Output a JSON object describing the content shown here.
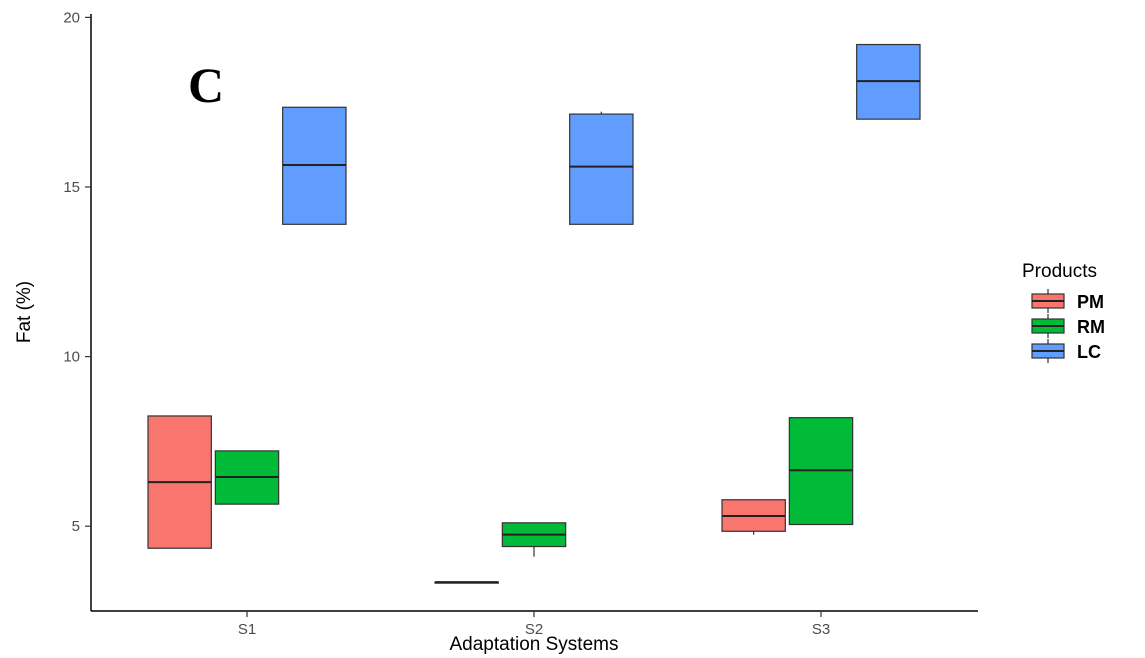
{
  "panel_label": "C",
  "chart_data": {
    "type": "box",
    "xlabel": "Adaptation Systems",
    "ylabel": "Fat (%)",
    "categories": [
      "S1",
      "S2",
      "S3"
    ],
    "y_ticks": [
      5,
      10,
      15,
      20
    ],
    "ylim": [
      2.5,
      20.1
    ],
    "grid": false,
    "legend": {
      "title": "Products",
      "position": "right"
    },
    "series": [
      {
        "name": "PM",
        "color": "#F8766D",
        "boxes": [
          {
            "category": "S1",
            "min": 4.35,
            "q1": 4.35,
            "median": 6.3,
            "q3": 8.25,
            "max": 8.25
          },
          {
            "category": "S2",
            "min": 3.35,
            "q1": 3.35,
            "median": 3.35,
            "q3": 3.35,
            "max": 3.35
          },
          {
            "category": "S3",
            "min": 4.75,
            "q1": 4.85,
            "median": 5.3,
            "q3": 5.78,
            "max": 5.78
          }
        ]
      },
      {
        "name": "RM",
        "color": "#00BA38",
        "boxes": [
          {
            "category": "S1",
            "min": 5.65,
            "q1": 5.65,
            "median": 6.45,
            "q3": 7.22,
            "max": 7.22
          },
          {
            "category": "S2",
            "min": 4.1,
            "q1": 4.4,
            "median": 4.75,
            "q3": 5.1,
            "max": 5.1
          },
          {
            "category": "S3",
            "min": 5.05,
            "q1": 5.05,
            "median": 6.65,
            "q3": 8.2,
            "max": 8.2
          }
        ]
      },
      {
        "name": "LC",
        "color": "#619CFF",
        "boxes": [
          {
            "category": "S1",
            "min": 13.9,
            "q1": 13.9,
            "median": 15.65,
            "q3": 17.35,
            "max": 17.35
          },
          {
            "category": "S2",
            "min": 13.9,
            "q1": 13.9,
            "median": 15.6,
            "q3": 17.15,
            "max": 17.22
          },
          {
            "category": "S3",
            "min": 17.0,
            "q1": 17.0,
            "median": 18.12,
            "q3": 19.2,
            "max": 19.2
          }
        ]
      }
    ]
  }
}
